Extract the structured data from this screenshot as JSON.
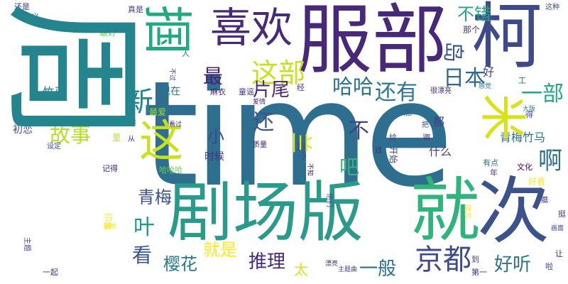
{
  "words": [
    {
      "text": "time",
      "color": "#2e6e8e",
      "orientation": "horizontal"
    },
    {
      "text": "剧场版",
      "color": "#2a9a8a",
      "orientation": "horizontal"
    },
    {
      "text": "服部",
      "color": "#482878",
      "orientation": "horizontal"
    },
    {
      "text": "柯",
      "color": "#3e4a89",
      "orientation": "horizontal"
    },
    {
      "text": "喜欢",
      "color": "#472a7a",
      "orientation": "horizontal"
    },
    {
      "text": "就",
      "color": "#2fb47c",
      "orientation": "horizontal"
    },
    {
      "text": "次",
      "color": "#3b528b",
      "orientation": "horizontal"
    },
    {
      "text": "这",
      "color": "#c8e020",
      "orientation": "horizontal"
    },
    {
      "text": "这部",
      "color": "#c8e020",
      "orientation": "horizontal"
    },
    {
      "text": "京都",
      "color": "#3e4a89",
      "orientation": "horizontal"
    },
    {
      "text": "新",
      "color": "#25858e",
      "orientation": "horizontal"
    },
    {
      "text": "故事",
      "color": "#b5de2b",
      "orientation": "horizontal"
    },
    {
      "text": "哈哈",
      "color": "#2c728e",
      "orientation": "horizontal"
    },
    {
      "text": "还有",
      "color": "#2a788e",
      "orientation": "horizontal"
    },
    {
      "text": "日本",
      "color": "#31688e",
      "orientation": "horizontal"
    },
    {
      "text": "一部",
      "color": "#22a884",
      "orientation": "horizontal"
    },
    {
      "text": "不错",
      "color": "#20a386",
      "orientation": "horizontal"
    },
    {
      "text": "最",
      "color": "#482475",
      "orientation": "horizontal"
    },
    {
      "text": "片尾",
      "color": "#482677",
      "orientation": "horizontal"
    },
    {
      "text": "小",
      "color": "#3e4a89",
      "orientation": "horizontal"
    },
    {
      "text": "还",
      "color": "#3a548c",
      "orientation": "horizontal"
    },
    {
      "text": "不",
      "color": "#414487",
      "orientation": "horizontal"
    },
    {
      "text": "啊",
      "color": "#2d708e",
      "orientation": "horizontal"
    },
    {
      "text": "吧",
      "color": "#35b779",
      "orientation": "horizontal"
    },
    {
      "text": "青梅竹马",
      "color": "#2c728e",
      "orientation": "horizontal"
    },
    {
      "text": "什么",
      "color": "#433e85",
      "orientation": "horizontal"
    },
    {
      "text": "青梅",
      "color": "#3b528b",
      "orientation": "horizontal"
    },
    {
      "text": "叶",
      "color": "#1f988b",
      "orientation": "horizontal"
    },
    {
      "text": "看",
      "color": "#3a548c",
      "orientation": "horizontal"
    },
    {
      "text": "樱花",
      "color": "#2a788e",
      "orientation": "horizontal"
    },
    {
      "text": "就是",
      "color": "#fde725",
      "orientation": "horizontal"
    },
    {
      "text": "推理",
      "color": "#482878",
      "orientation": "horizontal"
    },
    {
      "text": "一般",
      "color": "#2d708e",
      "orientation": "horizontal"
    },
    {
      "text": "好听",
      "color": "#2c728e",
      "orientation": "horizontal"
    },
    {
      "text": "太",
      "color": "#d8e219",
      "orientation": "horizontal"
    },
    {
      "text": "竹马",
      "color": "#2a788e",
      "orientation": "horizontal"
    },
    {
      "text": "好",
      "color": "#3e4a89",
      "orientation": "horizontal"
    },
    {
      "text": "那个",
      "color": "#46337e",
      "orientation": "horizontal"
    },
    {
      "text": "那",
      "color": "#433e85",
      "orientation": "horizontal"
    },
    {
      "text": "时候",
      "color": "#46337e",
      "orientation": "horizontal"
    },
    {
      "text": "初恋",
      "color": "#3e4a89",
      "orientation": "horizontal"
    },
    {
      "text": "麻衣",
      "color": "#482475",
      "orientation": "horizontal"
    },
    {
      "text": "童谣",
      "color": "#46337e",
      "orientation": "horizontal"
    },
    {
      "text": "最好",
      "color": "#6ece58",
      "orientation": "horizontal"
    },
    {
      "text": "最爱",
      "color": "#a0da39",
      "orientation": "horizontal"
    },
    {
      "text": "现在",
      "color": "#2c728e",
      "orientation": "horizontal"
    },
    {
      "text": "还是",
      "color": "#443983",
      "orientation": "horizontal"
    },
    {
      "text": "真是",
      "color": "#433e85",
      "orientation": "horizontal"
    },
    {
      "text": "这种",
      "color": "#3b528b",
      "orientation": "horizontal"
    },
    {
      "text": "很漂亮",
      "color": "#482878",
      "orientation": "horizontal"
    },
    {
      "text": "感觉",
      "color": "#2d708e",
      "orientation": "horizontal"
    },
    {
      "text": "大阪",
      "color": "#287c8e",
      "orientation": "horizontal"
    },
    {
      "text": "能",
      "color": "#31688e",
      "orientation": "horizontal"
    },
    {
      "text": "不是",
      "color": "#433e85",
      "orientation": "horizontal"
    },
    {
      "text": "看过",
      "color": "#482475",
      "orientation": "horizontal"
    },
    {
      "text": "爱情",
      "color": "#482878",
      "orientation": "horizontal"
    },
    {
      "text": "质量",
      "color": "#482475",
      "orientation": "horizontal"
    },
    {
      "text": "给",
      "color": "#3e4a89",
      "orientation": "horizontal"
    },
    {
      "text": "里",
      "color": "#b5de2b",
      "orientation": "horizontal"
    },
    {
      "text": "从",
      "color": "#433e85",
      "orientation": "horizontal"
    },
    {
      "text": "把",
      "color": "#3e4a89",
      "orientation": "horizontal"
    },
    {
      "text": "设定",
      "color": "#3e4a89",
      "orientation": "horizontal"
    },
    {
      "text": "记得",
      "color": "#482878",
      "orientation": "horizontal"
    },
    {
      "text": "哈哈哈",
      "color": "#6ece58",
      "orientation": "horizontal"
    },
    {
      "text": "过",
      "color": "#482475",
      "orientation": "horizontal"
    },
    {
      "text": "文化",
      "color": "#440154",
      "orientation": "horizontal"
    },
    {
      "text": "有点",
      "color": "#2c728e",
      "orientation": "horizontal"
    },
    {
      "text": "好看",
      "color": "#fde725",
      "orientation": "horizontal"
    },
    {
      "text": "画面",
      "color": "#414487",
      "orientation": "horizontal"
    },
    {
      "text": "挺",
      "color": "#46337e",
      "orientation": "horizontal"
    },
    {
      "text": "让",
      "color": "#482475",
      "orientation": "horizontal"
    },
    {
      "text": "啦",
      "color": "#414487",
      "orientation": "horizontal"
    },
    {
      "text": "第一",
      "color": "#46337e",
      "orientation": "horizontal"
    },
    {
      "text": "到",
      "color": "#3e4a89",
      "orientation": "horizontal"
    },
    {
      "text": "漂亮",
      "color": "#46337e",
      "orientation": "horizontal"
    },
    {
      "text": "主题曲",
      "color": "#414487",
      "orientation": "horizontal"
    },
    {
      "text": "一起",
      "color": "#46337e",
      "orientation": "horizontal"
    },
    {
      "text": "剧情",
      "color": "#fde725",
      "orientation": "horizontal"
    },
    {
      "text": "工",
      "color": "#2c728e",
      "orientation": "horizontal"
    },
    {
      "text": "得",
      "color": "#3e4a89",
      "orientation": "horizontal"
    },
    {
      "text": "年",
      "color": "#46337e",
      "orientation": "horizontal"
    },
    {
      "text": "义",
      "color": "#414487",
      "orientation": "horizontal"
    },
    {
      "text": "人",
      "color": "#2d708e",
      "orientation": "horizontal"
    },
    {
      "text": "经",
      "color": "#46337e",
      "orientation": "horizontal"
    },
    {
      "text": "周",
      "color": "#25858e",
      "orientation": "vertical"
    },
    {
      "text": "掴",
      "color": "#22a884",
      "orientation": "vertical"
    },
    {
      "text": "米",
      "color": "#d8e219",
      "orientation": "vertical"
    },
    {
      "text": "岛",
      "color": "#3a548c",
      "orientation": "vertical"
    },
    {
      "text": "这个",
      "color": "#3e4a89",
      "orientation": "vertical"
    },
    {
      "text": "兰",
      "color": "#e5e419",
      "orientation": "vertical"
    },
    {
      "text": "开始",
      "color": "#414487",
      "orientation": "vertical"
    },
    {
      "text": "膝",
      "color": "#46337e",
      "orientation": "vertical"
    },
    {
      "text": "不过",
      "color": "#433e85",
      "orientation": "vertical"
    },
    {
      "text": "他们",
      "color": "#3b528b",
      "orientation": "vertical"
    },
    {
      "text": "情节",
      "color": "#fde725",
      "orientation": "vertical"
    },
    {
      "text": "印象",
      "color": "#fde725",
      "orientation": "vertical"
    },
    {
      "text": "不知",
      "color": "#482475",
      "orientation": "vertical"
    },
    {
      "text": "主题",
      "color": "#433e85",
      "orientation": "vertical"
    },
    {
      "text": "糊",
      "color": "#482878",
      "orientation": "vertical"
    }
  ]
}
